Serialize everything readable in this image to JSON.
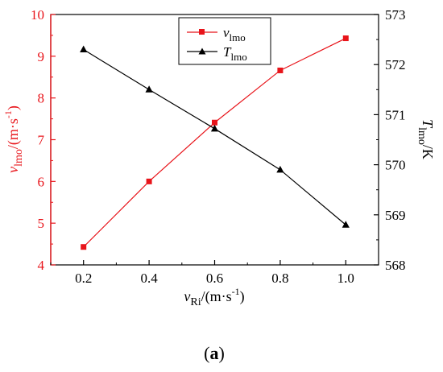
{
  "chart_data": {
    "type": "line",
    "x": [
      0.2,
      0.4,
      0.6,
      0.8,
      1.0
    ],
    "xlim": [
      0.1,
      1.1
    ],
    "xticks": [
      "0.2",
      "0.4",
      "0.6",
      "0.8",
      "1.0"
    ],
    "xlabel": {
      "main": "v",
      "sub": "Ri",
      "unit": "/(m·s",
      "sup": "-1",
      "close": ")"
    },
    "ylim_left": [
      4,
      10
    ],
    "yticks_left": [
      "4",
      "5",
      "6",
      "7",
      "8",
      "9",
      "10"
    ],
    "ylabel_left": {
      "main": "v",
      "sub": "lmo",
      "unit": "/(m·s",
      "sup": "-1",
      "close": ")"
    },
    "ylim_right": [
      568,
      573
    ],
    "yticks_right": [
      "568",
      "569",
      "570",
      "571",
      "572",
      "573"
    ],
    "ylabel_right": {
      "main": "T",
      "sub": "lmo",
      "unit": "/K"
    },
    "legend_position": "top-center",
    "panel_label": {
      "open": "(",
      "letter": "a",
      "close": ")"
    },
    "series": [
      {
        "name_main": "v",
        "name_sub": "lmo",
        "axis": "left",
        "marker": "square",
        "color": "#e8141a",
        "values": [
          4.43,
          6.0,
          7.41,
          8.66,
          9.43
        ]
      },
      {
        "name_main": "T",
        "name_sub": "lmo",
        "axis": "right",
        "marker": "triangle",
        "color": "#000000",
        "values": [
          572.3,
          571.5,
          570.72,
          569.9,
          568.8
        ]
      }
    ]
  }
}
